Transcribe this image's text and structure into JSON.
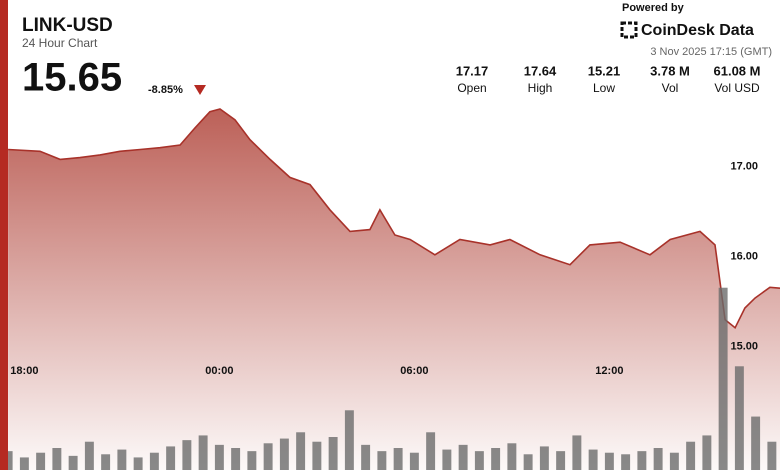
{
  "header": {
    "title": "LINK-USD",
    "subtitle": "24 Hour Chart",
    "price": "15.65",
    "change": "-8.85%",
    "powered_by": "Powered by",
    "brand": "CoinDesk Data",
    "timestamp": "3 Nov 2025 17:15 (GMT)"
  },
  "stats": [
    {
      "value": "17.17",
      "label": "Open"
    },
    {
      "value": "17.64",
      "label": "High"
    },
    {
      "value": "15.21",
      "label": "Low"
    },
    {
      "value": "3.78 M",
      "label": "Vol"
    },
    {
      "value": "61.08 M",
      "label": "Vol USD"
    }
  ],
  "chart_data": {
    "type": "area",
    "x": [
      0.25,
      1.23,
      1.85,
      2.46,
      3.08,
      3.69,
      4.31,
      4.92,
      5.54,
      6.0,
      6.46,
      6.77,
      7.23,
      7.69,
      8.31,
      8.92,
      9.54,
      10.15,
      10.77,
      11.38,
      11.69,
      12.15,
      12.62,
      13.38,
      14.15,
      15.08,
      15.69,
      16.62,
      17.54,
      18.15,
      19.08,
      20.0,
      20.62,
      21.54,
      22.0,
      22.31,
      22.62,
      22.92,
      23.23,
      23.69,
      24
    ],
    "values": [
      17.19,
      17.17,
      17.08,
      17.1,
      17.13,
      17.17,
      17.19,
      17.21,
      17.24,
      17.43,
      17.61,
      17.64,
      17.52,
      17.3,
      17.08,
      16.88,
      16.8,
      16.52,
      16.28,
      16.3,
      16.52,
      16.24,
      16.19,
      16.02,
      16.19,
      16.13,
      16.19,
      16.02,
      15.91,
      16.13,
      16.16,
      16.02,
      16.19,
      16.28,
      16.13,
      15.3,
      15.21,
      15.43,
      15.54,
      15.66,
      15.65
    ],
    "color": "#a8322a",
    "xlim": [
      0,
      24
    ],
    "ylim": [
      13.63,
      17.74
    ],
    "xticks": [
      {
        "value": 0.75,
        "label": "18:00"
      },
      {
        "value": 6.75,
        "label": "00:00"
      },
      {
        "value": 12.75,
        "label": "06:00"
      },
      {
        "value": 18.75,
        "label": "12:00"
      }
    ],
    "yticks": [
      {
        "value": 17,
        "label": "17.00"
      },
      {
        "value": 16,
        "label": "16.00"
      },
      {
        "value": 15,
        "label": "15.00"
      }
    ],
    "volume": {
      "color": "#6b6b6b",
      "ylim": [
        0,
        700
      ],
      "x": [
        0.25,
        0.75,
        1.25,
        1.75,
        2.25,
        2.75,
        3.25,
        3.75,
        4.25,
        4.75,
        5.25,
        5.75,
        6.25,
        6.75,
        7.25,
        7.75,
        8.25,
        8.75,
        9.25,
        9.75,
        10.25,
        10.75,
        11.25,
        11.75,
        12.25,
        12.75,
        13.25,
        13.75,
        14.25,
        14.75,
        15.25,
        15.75,
        16.25,
        16.75,
        17.25,
        17.75,
        18.25,
        18.75,
        19.25,
        19.75,
        20.25,
        20.75,
        21.25,
        21.75,
        22.25,
        22.75,
        23.25,
        23.75
      ],
      "values": [
        60,
        40,
        55,
        70,
        45,
        90,
        50,
        65,
        40,
        55,
        75,
        95,
        110,
        80,
        70,
        60,
        85,
        100,
        120,
        90,
        105,
        190,
        80,
        60,
        70,
        55,
        120,
        65,
        80,
        60,
        70,
        85,
        50,
        75,
        60,
        110,
        65,
        55,
        50,
        60,
        70,
        55,
        90,
        110,
        580,
        330,
        170,
        90
      ]
    }
  }
}
